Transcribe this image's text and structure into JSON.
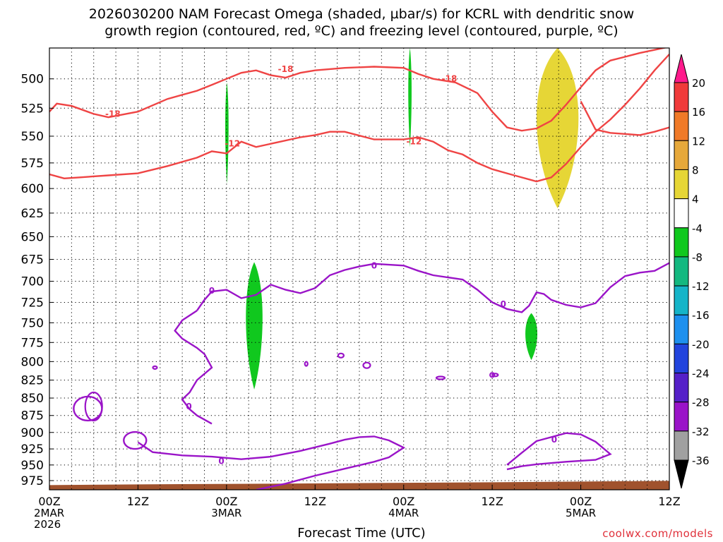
{
  "title_lines": [
    "2026030200 NAM Forecast Omega (shaded, µbar/s) for KCRL with dendritic snow",
    "growth region (contoured, red, ºC) and freezing level (contoured, purple, ºC)"
  ],
  "credit": "coolwx.com/models",
  "chart_data": {
    "type": "time-height cross-section",
    "xlabel": "Forecast Time (UTC)",
    "ylabel": "",
    "x_range_hours": [
      0,
      84
    ],
    "y_range_hpa": [
      475,
      990
    ],
    "y_scale": "log-pressure (inverted)",
    "grid": "dotted",
    "x_ticks": [
      {
        "hour": 0,
        "lines": [
          "00Z",
          "2MAR",
          "2026"
        ]
      },
      {
        "hour": 12,
        "lines": [
          "12Z"
        ]
      },
      {
        "hour": 24,
        "lines": [
          "00Z",
          "3MAR"
        ]
      },
      {
        "hour": 36,
        "lines": [
          "12Z"
        ]
      },
      {
        "hour": 48,
        "lines": [
          "00Z",
          "4MAR"
        ]
      },
      {
        "hour": 60,
        "lines": [
          "12Z"
        ]
      },
      {
        "hour": 72,
        "lines": [
          "00Z",
          "5MAR"
        ]
      },
      {
        "hour": 84,
        "lines": [
          "12Z"
        ]
      }
    ],
    "y_ticks": [
      500,
      525,
      550,
      575,
      600,
      625,
      650,
      675,
      700,
      725,
      750,
      775,
      800,
      825,
      850,
      875,
      900,
      925,
      950,
      975
    ],
    "colorbar": {
      "labels": [
        "20",
        "16",
        "12",
        "8",
        "4",
        "-4",
        "-8",
        "-12",
        "-16",
        "-20",
        "-24",
        "-28",
        "-32",
        "-36"
      ],
      "colors": [
        "#ff1a8c",
        "#f03a3a",
        "#f07a28",
        "#e6a83a",
        "#e6d636",
        "#ffffff",
        "#10c81e",
        "#14b880",
        "#16b4c8",
        "#1e90ee",
        "#2244dd",
        "#5520c8",
        "#9a14c8",
        "#a0a0a0",
        "#000000"
      ]
    },
    "dgz_contours": {
      "color": "#ef4444",
      "labels": [
        "-18",
        "-18",
        "-18",
        "-12",
        "-12"
      ],
      "minus18": [
        [
          0,
          528
        ],
        [
          1,
          521
        ],
        [
          3,
          523
        ],
        [
          6,
          530
        ],
        [
          8,
          533
        ],
        [
          12,
          528
        ],
        [
          16,
          517
        ],
        [
          20,
          510
        ],
        [
          22,
          505
        ],
        [
          24,
          500
        ],
        [
          26,
          495
        ],
        [
          28,
          493
        ],
        [
          30,
          497
        ],
        [
          32,
          499
        ],
        [
          34,
          495
        ],
        [
          36,
          493
        ],
        [
          40,
          491
        ],
        [
          44,
          490
        ],
        [
          48,
          491
        ],
        [
          50,
          496
        ],
        [
          52,
          500
        ],
        [
          55,
          503
        ],
        [
          58,
          512
        ],
        [
          60,
          528
        ],
        [
          62,
          542
        ],
        [
          64,
          545
        ],
        [
          66,
          543
        ],
        [
          68,
          536
        ],
        [
          70,
          522
        ],
        [
          72,
          507
        ],
        [
          74,
          493
        ],
        [
          76,
          485
        ],
        [
          78,
          482
        ],
        [
          80,
          479
        ],
        [
          84,
          474
        ]
      ],
      "minus18_branch": [
        [
          72,
          519
        ],
        [
          74,
          544
        ],
        [
          76,
          547
        ],
        [
          80,
          549
        ],
        [
          82,
          546
        ],
        [
          84,
          542
        ],
        [
          85,
          538
        ]
      ],
      "minus12": [
        [
          0,
          586
        ],
        [
          2,
          590
        ],
        [
          4,
          589
        ],
        [
          8,
          587
        ],
        [
          12,
          585
        ],
        [
          16,
          578
        ],
        [
          20,
          570
        ],
        [
          22,
          564
        ],
        [
          24,
          566
        ],
        [
          26,
          555
        ],
        [
          28,
          560
        ],
        [
          30,
          557
        ],
        [
          34,
          551
        ],
        [
          36,
          549
        ],
        [
          38,
          546
        ],
        [
          40,
          546
        ],
        [
          44,
          553
        ],
        [
          48,
          553
        ],
        [
          50,
          551
        ],
        [
          52,
          555
        ],
        [
          54,
          563
        ],
        [
          56,
          567
        ],
        [
          58,
          575
        ],
        [
          60,
          581
        ],
        [
          62,
          585
        ],
        [
          64,
          589
        ],
        [
          66,
          593
        ],
        [
          68,
          589
        ],
        [
          70,
          576
        ],
        [
          72,
          560
        ],
        [
          74,
          546
        ],
        [
          76,
          535
        ],
        [
          78,
          522
        ],
        [
          80,
          508
        ],
        [
          82,
          493
        ],
        [
          84,
          480
        ]
      ]
    },
    "freezing_level": {
      "color": "#9a14c8",
      "label": "0",
      "upper": [
        [
          20,
          735
        ],
        [
          21,
          722
        ],
        [
          22,
          712
        ],
        [
          24,
          710
        ],
        [
          26,
          720
        ],
        [
          28,
          716
        ],
        [
          30,
          704
        ],
        [
          32,
          710
        ],
        [
          34,
          714
        ],
        [
          36,
          708
        ],
        [
          38,
          693
        ],
        [
          40,
          687
        ],
        [
          42,
          683
        ],
        [
          44,
          680
        ],
        [
          48,
          682
        ],
        [
          50,
          688
        ],
        [
          52,
          693
        ],
        [
          56,
          698
        ],
        [
          58,
          710
        ],
        [
          60,
          725
        ],
        [
          62,
          733
        ],
        [
          64,
          737
        ],
        [
          65,
          729
        ],
        [
          66,
          713
        ],
        [
          67,
          715
        ],
        [
          68,
          722
        ],
        [
          70,
          728
        ],
        [
          72,
          731
        ],
        [
          74,
          726
        ],
        [
          76,
          707
        ],
        [
          78,
          694
        ],
        [
          80,
          690
        ],
        [
          82,
          688
        ],
        [
          84,
          679
        ],
        [
          86,
          676
        ]
      ],
      "left_branch": [
        [
          20,
          735
        ],
        [
          18,
          747
        ],
        [
          17,
          760
        ],
        [
          18,
          770
        ],
        [
          20,
          782
        ],
        [
          21,
          790
        ],
        [
          22,
          808
        ],
        [
          20,
          825
        ],
        [
          19,
          842
        ],
        [
          18,
          852
        ],
        [
          19,
          866
        ],
        [
          20,
          875
        ],
        [
          22,
          887
        ]
      ],
      "lower": [
        [
          12,
          915
        ],
        [
          14,
          930
        ],
        [
          18,
          935
        ],
        [
          22,
          937
        ],
        [
          26,
          941
        ],
        [
          30,
          937
        ],
        [
          34,
          928
        ],
        [
          38,
          917
        ],
        [
          40,
          911
        ],
        [
          42,
          907
        ],
        [
          44,
          906
        ],
        [
          46,
          912
        ],
        [
          48,
          923
        ],
        [
          46,
          938
        ],
        [
          44,
          945
        ],
        [
          40,
          956
        ],
        [
          36,
          967
        ],
        [
          32,
          980
        ],
        [
          28,
          990
        ]
      ],
      "lower_right": [
        [
          62,
          957
        ],
        [
          64,
          952
        ],
        [
          66,
          949
        ],
        [
          70,
          945
        ],
        [
          74,
          942
        ],
        [
          76,
          933
        ],
        [
          74,
          914
        ],
        [
          72,
          903
        ],
        [
          70,
          901
        ],
        [
          66,
          913
        ],
        [
          64,
          931
        ],
        [
          62,
          950
        ]
      ]
    },
    "omega_shaded": [
      {
        "color": "#10c81e",
        "hour_range": [
          23.8,
          24.3
        ],
        "p_range": [
          503,
          595
        ]
      },
      {
        "color": "#10c81e",
        "hour_range": [
          48.6,
          49.1
        ],
        "p_range": [
          475,
          560
        ]
      },
      {
        "color": "#10c81e",
        "hour_range": [
          26.5,
          29.0
        ],
        "p_range": [
          678,
          838
        ]
      },
      {
        "color": "#10c81e",
        "hour_range": [
          64.4,
          66.2
        ],
        "p_range": [
          738,
          798
        ]
      },
      {
        "color": "#e6d636",
        "hour_range": [
          65.7,
          72.0
        ],
        "p_range": [
          475,
          620
        ]
      }
    ],
    "surface": {
      "color": "#a0522d",
      "p_top": 980
    }
  }
}
